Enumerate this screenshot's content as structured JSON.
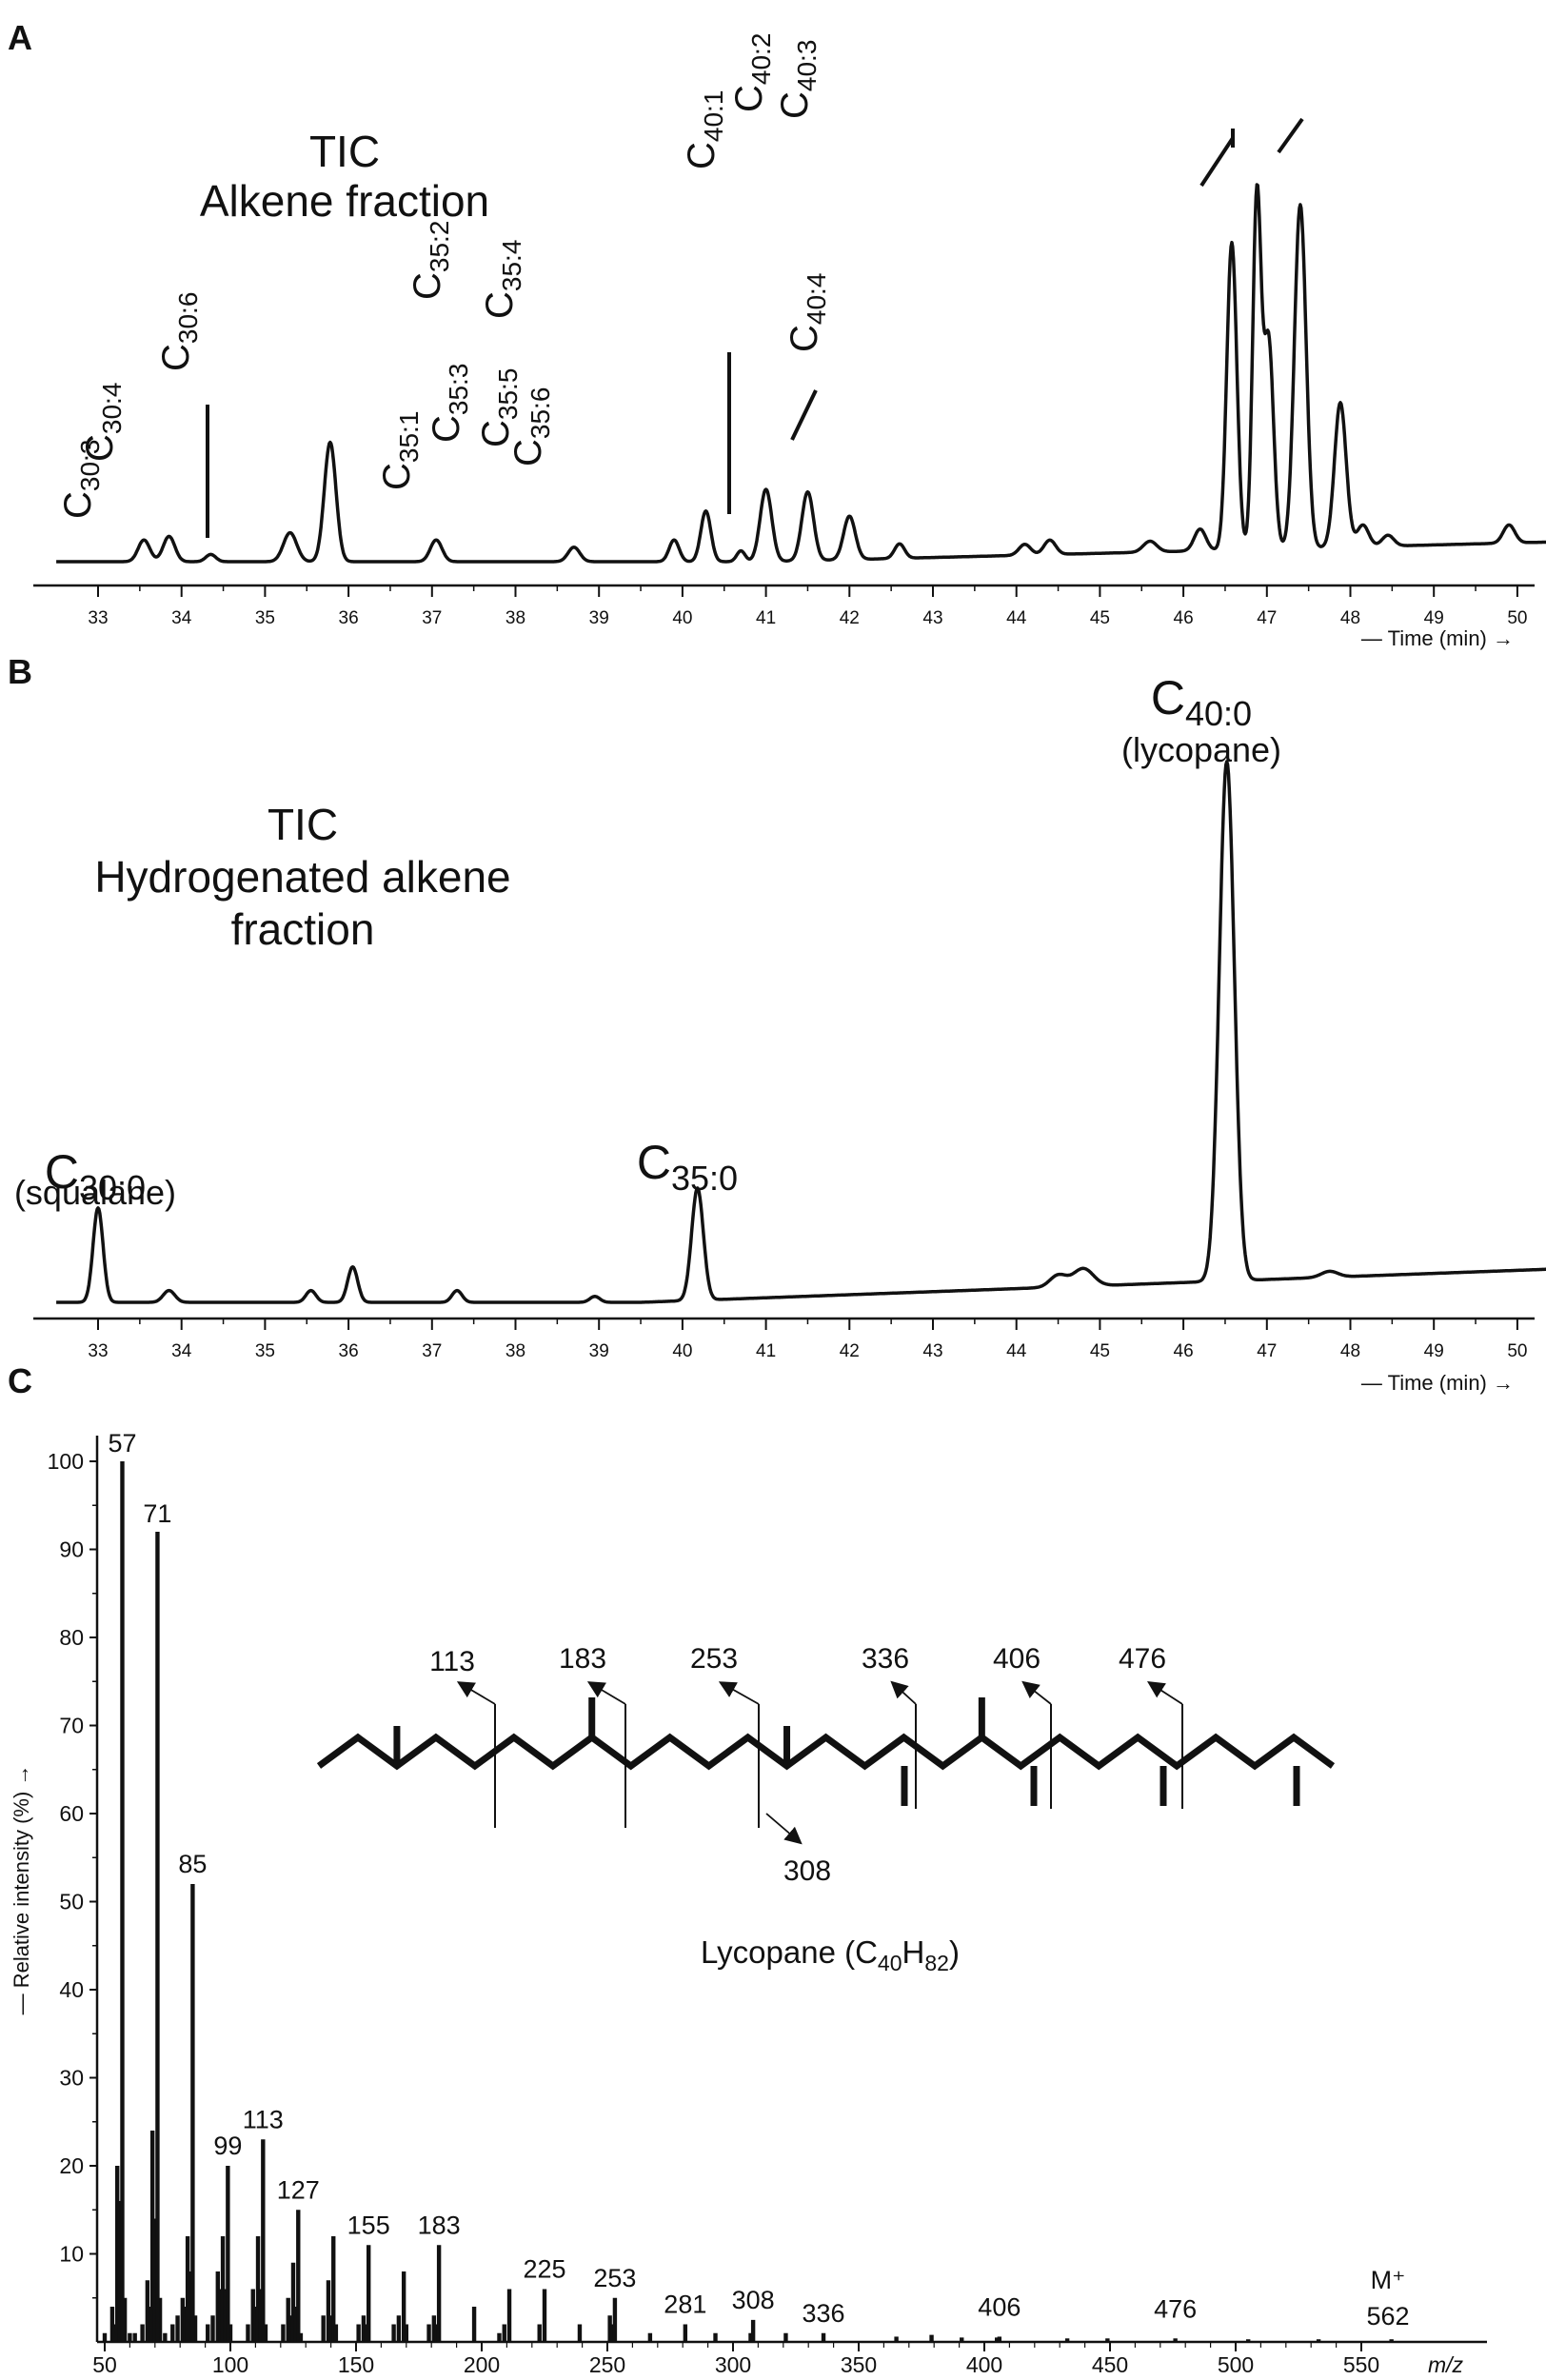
{
  "panels": {
    "a": {
      "label": "A",
      "title_line1": "TIC",
      "title_line2": "Alkene fraction",
      "time_label": "— Time (min) →"
    },
    "b": {
      "label": "B",
      "title_line1": "TIC",
      "title_line2": "Hydrogenated alkene",
      "title_line3": "fraction",
      "time_label": "— Time (min) →"
    },
    "c": {
      "label": "C",
      "y_axis_label": "— Relative intensity (%) →",
      "x_axis_label": "m/z",
      "molecule_name": "Lycopane (C40H82)",
      "molecular_ion": "M⁺",
      "molecular_ion_mass": "562"
    }
  },
  "chart_data": [
    {
      "type": "line",
      "panel": "A",
      "xlabel": "Time (min)",
      "xlim": [
        32.5,
        50.5
      ],
      "ticks": [
        33,
        34,
        35,
        36,
        37,
        38,
        39,
        40,
        41,
        42,
        43,
        44,
        45,
        46,
        47,
        48,
        49,
        50
      ],
      "grid": false,
      "baseline_note": "relative TIC intensity (arbitrary units, 0-100)",
      "peaks": [
        {
          "t": 33.55,
          "h": 6,
          "w": 0.07
        },
        {
          "t": 33.85,
          "h": 7,
          "w": 0.07
        },
        {
          "t": 34.35,
          "h": 2,
          "w": 0.06
        },
        {
          "t": 35.3,
          "h": 8,
          "w": 0.08
        },
        {
          "t": 35.78,
          "h": 33,
          "w": 0.07
        },
        {
          "t": 37.05,
          "h": 6,
          "w": 0.07
        },
        {
          "t": 38.7,
          "h": 4,
          "w": 0.07
        },
        {
          "t": 39.9,
          "h": 6,
          "w": 0.06
        },
        {
          "t": 40.28,
          "h": 14,
          "w": 0.06
        },
        {
          "t": 40.7,
          "h": 3,
          "w": 0.05
        },
        {
          "t": 41.0,
          "h": 20,
          "w": 0.07
        },
        {
          "t": 41.5,
          "h": 19,
          "w": 0.07
        },
        {
          "t": 42.0,
          "h": 12,
          "w": 0.07
        },
        {
          "t": 42.6,
          "h": 4,
          "w": 0.06
        },
        {
          "t": 44.1,
          "h": 3,
          "w": 0.07
        },
        {
          "t": 44.4,
          "h": 4,
          "w": 0.07
        },
        {
          "t": 45.6,
          "h": 3,
          "w": 0.08
        },
        {
          "t": 46.2,
          "h": 6,
          "w": 0.07
        },
        {
          "t": 46.58,
          "h": 85,
          "w": 0.06
        },
        {
          "t": 46.88,
          "h": 97,
          "w": 0.05
        },
        {
          "t": 47.02,
          "h": 58,
          "w": 0.06
        },
        {
          "t": 47.4,
          "h": 95,
          "w": 0.07
        },
        {
          "t": 47.88,
          "h": 40,
          "w": 0.07
        },
        {
          "t": 48.15,
          "h": 6,
          "w": 0.07
        },
        {
          "t": 48.45,
          "h": 3,
          "w": 0.07
        },
        {
          "t": 49.9,
          "h": 5,
          "w": 0.07
        }
      ],
      "annotations": [
        {
          "base": "C",
          "sub": "30:3",
          "t": 33.85
        },
        {
          "base": "C",
          "sub": "30:4",
          "t": 34.35
        },
        {
          "base": "C",
          "sub": "30:6",
          "t": 35.78
        },
        {
          "base": "C",
          "sub": "35:1",
          "t": 40.28
        },
        {
          "base": "C",
          "sub": "35:2",
          "t": 40.7
        },
        {
          "base": "C",
          "sub": "35:3",
          "t": 41.0
        },
        {
          "base": "C",
          "sub": "35:4",
          "t": 41.5
        },
        {
          "base": "C",
          "sub": "35:5",
          "t": 42.0
        },
        {
          "base": "C",
          "sub": "35:6",
          "t": 42.6
        },
        {
          "base": "C",
          "sub": "40:1",
          "t": 46.58
        },
        {
          "base": "C",
          "sub": "40:2",
          "t": 46.88
        },
        {
          "base": "C",
          "sub": "40:3",
          "t": 47.4
        },
        {
          "base": "C",
          "sub": "40:4",
          "t": 47.88
        }
      ]
    },
    {
      "type": "line",
      "panel": "B",
      "xlabel": "Time (min)",
      "xlim": [
        32.5,
        50.5
      ],
      "ticks": [
        33,
        34,
        35,
        36,
        37,
        38,
        39,
        40,
        41,
        42,
        43,
        44,
        45,
        46,
        47,
        48,
        49,
        50
      ],
      "grid": false,
      "baseline_note": "relative TIC intensity (arbitrary units, 0-100)",
      "peaks": [
        {
          "t": 33.0,
          "h": 16,
          "w": 0.06
        },
        {
          "t": 33.85,
          "h": 2,
          "w": 0.07
        },
        {
          "t": 35.55,
          "h": 2,
          "w": 0.06
        },
        {
          "t": 36.05,
          "h": 6,
          "w": 0.06
        },
        {
          "t": 37.3,
          "h": 2,
          "w": 0.06
        },
        {
          "t": 38.95,
          "h": 1,
          "w": 0.06
        },
        {
          "t": 40.18,
          "h": 19,
          "w": 0.07
        },
        {
          "t": 44.5,
          "h": 2,
          "w": 0.1
        },
        {
          "t": 44.8,
          "h": 3,
          "w": 0.12
        },
        {
          "t": 46.52,
          "h": 88,
          "w": 0.09
        },
        {
          "t": 47.75,
          "h": 1,
          "w": 0.1
        }
      ],
      "annotations": [
        {
          "base": "C",
          "sub": "30:0",
          "note": "(squalane)",
          "t": 33.0
        },
        {
          "base": "C",
          "sub": "35:0",
          "t": 40.18
        },
        {
          "base": "C",
          "sub": "40:0",
          "note": "(lycopane)",
          "t": 46.52
        }
      ]
    },
    {
      "type": "bar",
      "panel": "C",
      "xlabel": "m/z",
      "ylabel": "Relative intensity (%)",
      "xlim": [
        47,
        568
      ],
      "ylim": [
        0,
        100
      ],
      "xticks": [
        50,
        100,
        150,
        200,
        250,
        300,
        350,
        400,
        450,
        500,
        550
      ],
      "yticks": [
        10,
        20,
        30,
        40,
        50,
        60,
        70,
        80,
        90,
        100
      ],
      "grid": false,
      "labeled_peaks": [
        {
          "x": 57,
          "y": 100,
          "label": "57"
        },
        {
          "x": 71,
          "y": 92,
          "label": "71"
        },
        {
          "x": 85,
          "y": 52,
          "label": "85"
        },
        {
          "x": 99,
          "y": 20,
          "label": "99"
        },
        {
          "x": 113,
          "y": 23,
          "label": "113"
        },
        {
          "x": 127,
          "y": 15,
          "label": "127"
        },
        {
          "x": 155,
          "y": 11,
          "label": "155"
        },
        {
          "x": 183,
          "y": 11,
          "label": "183"
        },
        {
          "x": 225,
          "y": 6,
          "label": "225"
        },
        {
          "x": 253,
          "y": 5,
          "label": "253"
        },
        {
          "x": 281,
          "y": 2,
          "label": "281"
        },
        {
          "x": 308,
          "y": 2.5,
          "label": "308"
        },
        {
          "x": 336,
          "y": 1,
          "label": "336"
        },
        {
          "x": 406,
          "y": 0.6,
          "label": "406"
        },
        {
          "x": 476,
          "y": 0.4,
          "label": "476"
        }
      ],
      "minor_peaks": [
        {
          "x": 50,
          "y": 1
        },
        {
          "x": 53,
          "y": 4
        },
        {
          "x": 54,
          "y": 2
        },
        {
          "x": 55,
          "y": 20
        },
        {
          "x": 56,
          "y": 16
        },
        {
          "x": 58,
          "y": 5
        },
        {
          "x": 60,
          "y": 1
        },
        {
          "x": 62,
          "y": 1
        },
        {
          "x": 65,
          "y": 2
        },
        {
          "x": 67,
          "y": 7
        },
        {
          "x": 68,
          "y": 4
        },
        {
          "x": 69,
          "y": 24
        },
        {
          "x": 70,
          "y": 14
        },
        {
          "x": 72,
          "y": 5
        },
        {
          "x": 74,
          "y": 1
        },
        {
          "x": 77,
          "y": 2
        },
        {
          "x": 79,
          "y": 3
        },
        {
          "x": 81,
          "y": 5
        },
        {
          "x": 82,
          "y": 4
        },
        {
          "x": 83,
          "y": 12
        },
        {
          "x": 84,
          "y": 8
        },
        {
          "x": 86,
          "y": 3
        },
        {
          "x": 91,
          "y": 2
        },
        {
          "x": 93,
          "y": 3
        },
        {
          "x": 95,
          "y": 8
        },
        {
          "x": 96,
          "y": 6
        },
        {
          "x": 97,
          "y": 12
        },
        {
          "x": 98,
          "y": 6
        },
        {
          "x": 100,
          "y": 2
        },
        {
          "x": 107,
          "y": 2
        },
        {
          "x": 109,
          "y": 6
        },
        {
          "x": 110,
          "y": 4
        },
        {
          "x": 111,
          "y": 12
        },
        {
          "x": 112,
          "y": 6
        },
        {
          "x": 114,
          "y": 2
        },
        {
          "x": 121,
          "y": 2
        },
        {
          "x": 123,
          "y": 5
        },
        {
          "x": 124,
          "y": 3
        },
        {
          "x": 125,
          "y": 9
        },
        {
          "x": 126,
          "y": 4
        },
        {
          "x": 128,
          "y": 1
        },
        {
          "x": 137,
          "y": 3
        },
        {
          "x": 139,
          "y": 7
        },
        {
          "x": 140,
          "y": 3
        },
        {
          "x": 141,
          "y": 12
        },
        {
          "x": 142,
          "y": 2
        },
        {
          "x": 151,
          "y": 2
        },
        {
          "x": 153,
          "y": 3
        },
        {
          "x": 154,
          "y": 2
        },
        {
          "x": 165,
          "y": 2
        },
        {
          "x": 167,
          "y": 3
        },
        {
          "x": 169,
          "y": 8
        },
        {
          "x": 170,
          "y": 2
        },
        {
          "x": 179,
          "y": 2
        },
        {
          "x": 181,
          "y": 3
        },
        {
          "x": 182,
          "y": 2
        },
        {
          "x": 197,
          "y": 4
        },
        {
          "x": 207,
          "y": 1
        },
        {
          "x": 209,
          "y": 2
        },
        {
          "x": 211,
          "y": 6
        },
        {
          "x": 223,
          "y": 2
        },
        {
          "x": 239,
          "y": 2
        },
        {
          "x": 251,
          "y": 3
        },
        {
          "x": 252,
          "y": 2
        },
        {
          "x": 267,
          "y": 1
        },
        {
          "x": 293,
          "y": 1
        },
        {
          "x": 307,
          "y": 1
        },
        {
          "x": 321,
          "y": 1
        },
        {
          "x": 365,
          "y": 0.6
        },
        {
          "x": 379,
          "y": 0.8
        },
        {
          "x": 391,
          "y": 0.5
        },
        {
          "x": 405,
          "y": 0.5
        },
        {
          "x": 433,
          "y": 0.4
        },
        {
          "x": 449,
          "y": 0.4
        },
        {
          "x": 505,
          "y": 0.3
        },
        {
          "x": 533,
          "y": 0.3
        },
        {
          "x": 562,
          "y": 0.3
        }
      ],
      "structure_fragments": {
        "above": [
          "113",
          "183",
          "253",
          "336",
          "406",
          "476"
        ],
        "below": [
          "308"
        ]
      }
    }
  ]
}
